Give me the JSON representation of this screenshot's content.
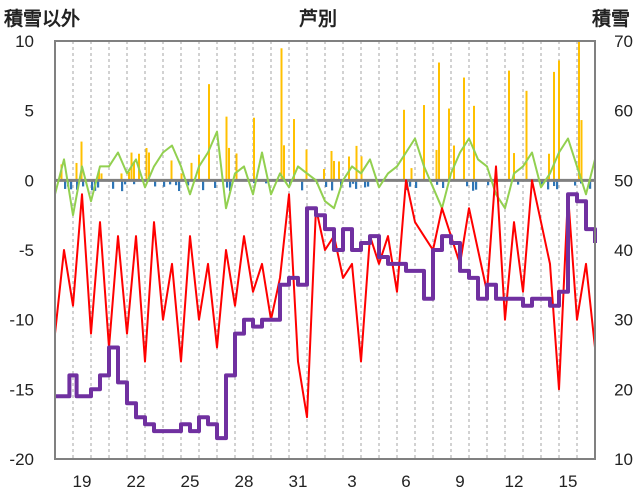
{
  "chart_data": {
    "type": "line",
    "title": "芦別",
    "left_axis_label": "積雪以外",
    "right_axis_label": "積雪",
    "y_left": {
      "min": -20,
      "max": 10,
      "ticks": [
        10,
        5,
        0,
        -5,
        -10,
        -15,
        -20
      ]
    },
    "y_right": {
      "min": 10,
      "max": 70,
      "ticks": [
        70,
        60,
        50,
        40,
        30,
        20,
        10
      ]
    },
    "x_tick_labels": [
      "19",
      "22",
      "25",
      "28",
      "31",
      "3",
      "6",
      "9",
      "12",
      "15"
    ],
    "x_tick_positions_days": [
      1.5,
      4.5,
      7.5,
      10.5,
      13.5,
      16.5,
      19.5,
      22.5,
      25.5,
      28.5
    ],
    "x_range_days": [
      0,
      30
    ],
    "grid": "vertical-dashed-daily",
    "colors": {
      "precipitation": "#FFC000",
      "sunshine_negative": "#2E75B6",
      "temperature_max": "#92D050",
      "temperature_min": "#FF0000",
      "snow_depth": "#7030A0",
      "zero_line": "#808080",
      "frame": "#808080"
    },
    "series": [
      {
        "name": "",
        "role": "temperature_max",
        "axis": "left",
        "x": [
          0,
          0.5,
          1,
          1.5,
          2,
          2.5,
          3,
          3.5,
          4,
          4.5,
          5,
          5.5,
          6,
          6.5,
          7,
          7.5,
          8,
          8.5,
          9,
          9.5,
          10,
          10.5,
          11,
          11.5,
          12,
          12.5,
          13,
          13.5,
          14,
          14.5,
          15,
          15.5,
          16,
          16.5,
          17,
          17.5,
          18,
          18.5,
          19,
          19.5,
          20,
          20.5,
          21,
          21.5,
          22,
          22.5,
          23,
          23.5,
          24,
          24.5,
          25,
          25.5,
          26,
          26.5,
          27,
          27.5,
          28,
          28.5,
          29,
          29.5,
          30
        ],
        "y": [
          -1,
          1.5,
          -2.5,
          1,
          -1.5,
          1,
          1,
          2,
          0.5,
          1.5,
          -0.5,
          1,
          2,
          2.5,
          1,
          -1,
          1,
          2,
          3.5,
          -2,
          0.5,
          1,
          -1,
          2,
          -1,
          0.5,
          -0.5,
          1,
          0.5,
          0,
          -1.5,
          -2,
          0,
          1,
          0.5,
          1.5,
          -0.5,
          0.5,
          1,
          2,
          3,
          1,
          -0.5,
          -2,
          0.5,
          2,
          3,
          1.5,
          1,
          -1,
          -2,
          0.5,
          1,
          2,
          -0.5,
          0.5,
          2,
          3,
          1,
          -1,
          1.5
        ]
      },
      {
        "name": "",
        "role": "temperature_min",
        "axis": "left",
        "x": [
          0,
          0.5,
          1,
          1.5,
          2,
          2.5,
          3,
          3.5,
          4,
          4.5,
          5,
          5.5,
          6,
          6.5,
          7,
          7.5,
          8,
          8.5,
          9,
          9.5,
          10,
          10.5,
          11,
          11.5,
          12,
          12.5,
          13,
          13.5,
          14,
          14.5,
          15,
          15.5,
          16,
          16.5,
          17,
          17.5,
          18,
          18.5,
          19,
          19.5,
          20,
          20.5,
          21,
          21.5,
          22,
          22.5,
          23,
          23.5,
          24,
          24.5,
          25,
          25.5,
          26,
          26.5,
          27,
          27.5,
          28,
          28.5,
          29,
          29.5,
          30
        ],
        "y": [
          -11,
          -5,
          -9,
          -1,
          -11,
          -3,
          -12,
          -4,
          -11,
          -4,
          -13,
          -3,
          -10,
          -6,
          -13,
          -4,
          -10,
          -6,
          -12,
          -5,
          -9,
          -4,
          -8,
          -6,
          -10,
          -7,
          -1,
          -13,
          -17,
          -2,
          -5,
          -4,
          -7,
          -6,
          -13,
          -4,
          -6,
          -4,
          -8,
          0,
          -3,
          -4,
          -5,
          -2,
          -4,
          -6,
          -2,
          -5,
          -8,
          1,
          -10,
          -3,
          -8,
          0,
          -3,
          -6,
          -15,
          -1,
          -10,
          -6,
          -12
        ]
      },
      {
        "name": "",
        "role": "snow_depth",
        "axis": "right",
        "x": [
          0,
          0.3,
          0.8,
          1.2,
          1.5,
          2,
          2.5,
          3,
          3.5,
          4,
          4.5,
          5,
          5.5,
          6,
          6.5,
          7,
          7.5,
          8,
          8.5,
          9,
          9.5,
          10,
          10.5,
          11,
          11.5,
          12,
          12.5,
          13,
          13.5,
          14,
          14.5,
          15,
          15.5,
          16,
          16.5,
          17,
          17.5,
          18,
          18.5,
          19,
          19.5,
          20,
          20.5,
          21,
          21.5,
          22,
          22.5,
          23,
          23.5,
          24,
          24.5,
          25,
          25.5,
          26,
          26.5,
          27,
          27.5,
          28,
          28.5,
          29,
          29.5,
          30
        ],
        "y": [
          19,
          19,
          22,
          19,
          19,
          20,
          22,
          26,
          21,
          18,
          16,
          15,
          14,
          14,
          14,
          15,
          14,
          16,
          15,
          13,
          22,
          28,
          30,
          29,
          30,
          30,
          35,
          36,
          35,
          46,
          45,
          43,
          40,
          43,
          40,
          41,
          42,
          39,
          38,
          38,
          37,
          37,
          33,
          40,
          42,
          41,
          37,
          36,
          33,
          35,
          33,
          33,
          33,
          32,
          33,
          33,
          32,
          34,
          48,
          47,
          43,
          41
        ]
      }
    ]
  }
}
